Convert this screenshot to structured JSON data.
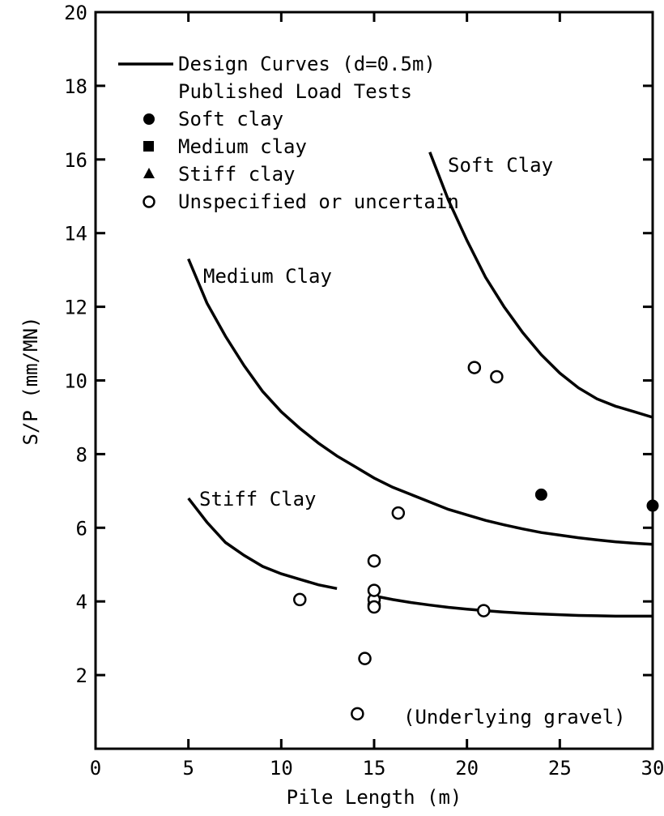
{
  "chart_data": {
    "type": "scatter",
    "xlabel": "Pile Length (m)",
    "ylabel": "S/P (mm/MN)",
    "xlim": [
      0,
      30
    ],
    "ylim": [
      0,
      20
    ],
    "x_ticks": [
      "0",
      "5",
      "10",
      "15",
      "20",
      "25",
      "30"
    ],
    "y_ticks": [
      "2",
      "4",
      "6",
      "8",
      "10",
      "12",
      "14",
      "16",
      "18",
      "20"
    ],
    "grid": false,
    "legend": {
      "placement": "top-left",
      "entries": [
        {
          "label": "Design Curves (d=0.5m)",
          "marker": "line"
        },
        {
          "label": "Published Load Tests",
          "marker": "none"
        },
        {
          "label": "Soft clay",
          "marker": "filled-circle"
        },
        {
          "label": "Medium clay",
          "marker": "filled-square"
        },
        {
          "label": "Stiff clay",
          "marker": "filled-triangle"
        },
        {
          "label": "Unspecified or uncertain",
          "marker": "open-circle"
        }
      ]
    },
    "annotations": [
      "(Underlying gravel)"
    ],
    "curves": [
      {
        "name": "Soft Clay",
        "x": [
          18,
          19,
          20,
          21,
          22,
          23,
          24,
          25,
          26,
          27,
          28,
          29,
          30
        ],
        "y": [
          16.2,
          14.9,
          13.8,
          12.8,
          12.0,
          11.3,
          10.7,
          10.2,
          9.8,
          9.5,
          9.3,
          9.15,
          9.0
        ]
      },
      {
        "name": "Medium Clay",
        "x": [
          5,
          6,
          7,
          8,
          9,
          10,
          11,
          12,
          13,
          14,
          15,
          16,
          17,
          18,
          19,
          20,
          21,
          22,
          23,
          24,
          25,
          26,
          27,
          28,
          29,
          30
        ],
        "y": [
          13.3,
          12.1,
          11.2,
          10.4,
          9.7,
          9.15,
          8.7,
          8.3,
          7.95,
          7.65,
          7.35,
          7.1,
          6.9,
          6.7,
          6.5,
          6.35,
          6.2,
          6.08,
          5.97,
          5.87,
          5.8,
          5.73,
          5.67,
          5.62,
          5.58,
          5.55
        ]
      },
      {
        "name": "Stiff Clay",
        "x": [
          5,
          6,
          7,
          8,
          9,
          10,
          11,
          12,
          13,
          15,
          16,
          17,
          18,
          19,
          20,
          21,
          22,
          23,
          24,
          25,
          26,
          27,
          28,
          29,
          30
        ],
        "y": [
          6.8,
          6.15,
          5.6,
          5.25,
          4.95,
          4.75,
          4.6,
          4.45,
          4.35,
          4.15,
          4.05,
          3.97,
          3.9,
          3.84,
          3.79,
          3.75,
          3.71,
          3.68,
          3.66,
          3.64,
          3.62,
          3.61,
          3.6,
          3.6,
          3.6
        ]
      }
    ],
    "series": [
      {
        "name": "Soft clay",
        "marker": "filled-circle",
        "x": [
          24,
          30
        ],
        "y": [
          6.9,
          6.6
        ]
      },
      {
        "name": "Unspecified or uncertain",
        "marker": "open-circle",
        "x": [
          11,
          14.1,
          14.5,
          15,
          15,
          15,
          15,
          15,
          16.3,
          20.4,
          21.6,
          20.9
        ],
        "y": [
          4.05,
          0.95,
          2.45,
          3.9,
          4.05,
          4.3,
          5.1,
          3.85,
          6.4,
          10.35,
          10.1,
          3.75
        ]
      }
    ]
  }
}
